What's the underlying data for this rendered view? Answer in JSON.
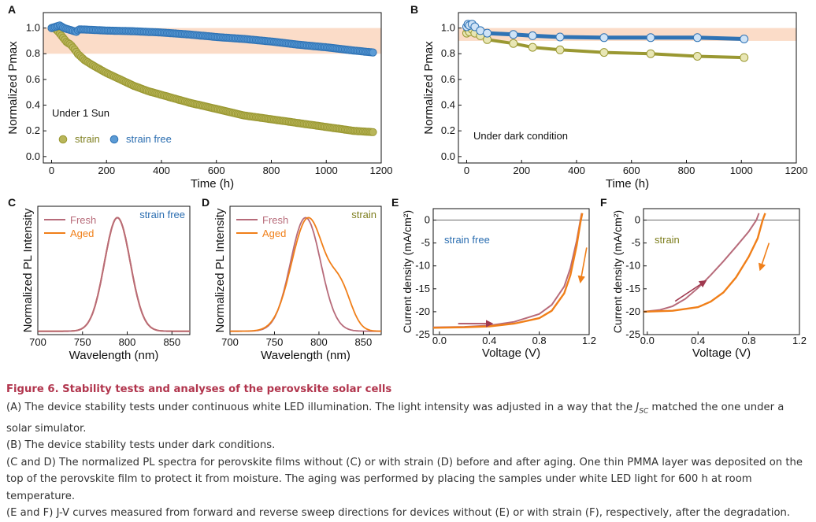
{
  "colors": {
    "olive": "#9a9832",
    "olive_fill": "#b9b65a",
    "blue": "#2f73b5",
    "blue_fill": "#5b9bd5",
    "band": "#fbdcc8",
    "fresh": "#b76b7a",
    "aged": "#f07f19",
    "arrow_fresh": "#a0394f",
    "strain_label": "#7e7f1f",
    "strainfree_label": "#2a6db0",
    "caption_title": "#b1354d"
  },
  "chart_data": [
    {
      "id": "A",
      "type": "scatter",
      "panel_letter": "A",
      "xlabel": "Time (h)",
      "ylabel": "Normalized Pmax",
      "xlim": [
        -30,
        1200
      ],
      "ylim": [
        -0.05,
        1.12
      ],
      "xticks": [
        "0",
        "200",
        "400",
        "600",
        "800",
        "1000",
        "1200"
      ],
      "yticks": [
        "0.0",
        "0.2",
        "0.4",
        "0.6",
        "0.8",
        "1.0"
      ],
      "band": [
        0.8,
        1.0
      ],
      "annotation": "Under 1 Sun",
      "legend": [
        {
          "label": "strain",
          "series": "strain"
        },
        {
          "label": "strain free",
          "series": "strain free"
        }
      ],
      "series": [
        {
          "name": "strain",
          "points": [
            [
              0,
              1.0
            ],
            [
              10,
              1.0
            ],
            [
              25,
              0.97
            ],
            [
              40,
              0.93
            ],
            [
              55,
              0.89
            ],
            [
              70,
              0.87
            ],
            [
              85,
              0.83
            ],
            [
              95,
              0.8
            ],
            [
              105,
              0.78
            ],
            [
              120,
              0.75
            ],
            [
              150,
              0.71
            ],
            [
              200,
              0.65
            ],
            [
              250,
              0.6
            ],
            [
              300,
              0.55
            ],
            [
              350,
              0.51
            ],
            [
              400,
              0.48
            ],
            [
              450,
              0.45
            ],
            [
              500,
              0.42
            ],
            [
              600,
              0.37
            ],
            [
              700,
              0.32
            ],
            [
              800,
              0.29
            ],
            [
              900,
              0.26
            ],
            [
              1000,
              0.23
            ],
            [
              1100,
              0.2
            ],
            [
              1170,
              0.19
            ]
          ]
        },
        {
          "name": "strain free",
          "points": [
            [
              0,
              1.0
            ],
            [
              15,
              1.01
            ],
            [
              30,
              1.02
            ],
            [
              45,
              1.0
            ],
            [
              60,
              0.99
            ],
            [
              75,
              0.98
            ],
            [
              90,
              0.97
            ],
            [
              100,
              0.99
            ],
            [
              200,
              0.98
            ],
            [
              300,
              0.975
            ],
            [
              400,
              0.965
            ],
            [
              500,
              0.95
            ],
            [
              600,
              0.93
            ],
            [
              700,
              0.915
            ],
            [
              800,
              0.895
            ],
            [
              900,
              0.87
            ],
            [
              1000,
              0.85
            ],
            [
              1100,
              0.825
            ],
            [
              1170,
              0.81
            ]
          ]
        }
      ]
    },
    {
      "id": "B",
      "type": "scatter",
      "panel_letter": "B",
      "xlabel": "Time (h)",
      "ylabel": "Normalized Pmax",
      "xlim": [
        -30,
        1200
      ],
      "ylim": [
        -0.05,
        1.12
      ],
      "xticks": [
        "0",
        "200",
        "400",
        "600",
        "800",
        "1000",
        "1200"
      ],
      "yticks": [
        "0.0",
        "0.2",
        "0.4",
        "0.6",
        "0.8",
        "1.0"
      ],
      "band": [
        0.9,
        1.0
      ],
      "annotation": "Under dark condition",
      "series": [
        {
          "name": "strain",
          "points": [
            [
              0,
              0.96
            ],
            [
              5,
              0.99
            ],
            [
              10,
              0.97
            ],
            [
              20,
              0.99
            ],
            [
              30,
              0.96
            ],
            [
              50,
              0.94
            ],
            [
              75,
              0.91
            ],
            [
              170,
              0.88
            ],
            [
              240,
              0.85
            ],
            [
              340,
              0.83
            ],
            [
              500,
              0.81
            ],
            [
              670,
              0.8
            ],
            [
              840,
              0.78
            ],
            [
              1010,
              0.77
            ]
          ]
        },
        {
          "name": "strain free",
          "points": [
            [
              0,
              1.01
            ],
            [
              5,
              1.03
            ],
            [
              10,
              1.02
            ],
            [
              20,
              1.03
            ],
            [
              30,
              1.01
            ],
            [
              50,
              0.98
            ],
            [
              75,
              0.96
            ],
            [
              170,
              0.95
            ],
            [
              240,
              0.94
            ],
            [
              340,
              0.93
            ],
            [
              500,
              0.925
            ],
            [
              670,
              0.925
            ],
            [
              840,
              0.925
            ],
            [
              1010,
              0.915
            ]
          ]
        }
      ]
    },
    {
      "id": "C",
      "type": "line",
      "panel_letter": "C",
      "xlabel": "Wavelength (nm)",
      "ylabel": "Normalized PL Intensity",
      "xlim": [
        700,
        870
      ],
      "ylim": [
        -0.03,
        1.1
      ],
      "xticks": [
        "700",
        "750",
        "800",
        "850"
      ],
      "annotation": "strain free",
      "legend": [
        {
          "label": "Fresh",
          "series": "Fresh"
        },
        {
          "label": "Aged",
          "series": "Aged"
        }
      ],
      "series": [
        {
          "name": "Fresh",
          "center": 789,
          "fwhm": 34,
          "shoulder": 0
        },
        {
          "name": "Aged",
          "center": 789,
          "fwhm": 34,
          "shoulder": 0
        }
      ]
    },
    {
      "id": "D",
      "type": "line",
      "panel_letter": "D",
      "xlabel": "Wavelength (nm)",
      "ylabel": "Normalized PL Intensity",
      "xlim": [
        700,
        870
      ],
      "ylim": [
        -0.03,
        1.1
      ],
      "xticks": [
        "700",
        "750",
        "800",
        "850"
      ],
      "annotation": "strain",
      "legend": [
        {
          "label": "Fresh",
          "series": "Fresh"
        },
        {
          "label": "Aged",
          "series": "Aged"
        }
      ],
      "series": [
        {
          "name": "Fresh",
          "center": 785,
          "fwhm": 40,
          "shoulder": 0
        },
        {
          "name": "Aged",
          "center": 788,
          "fwhm": 44,
          "shoulder": 0.32
        }
      ]
    },
    {
      "id": "E",
      "type": "line",
      "panel_letter": "E",
      "xlabel": "Voltage (V)",
      "ylabel": "Current density (mA/cm²)",
      "xlim": [
        -0.05,
        1.2
      ],
      "ylim": [
        -25,
        2.5
      ],
      "xticks": [
        "0.0",
        "0.4",
        "0.8",
        "1.2"
      ],
      "yticks": [
        "0",
        "-5",
        "-10",
        "-15",
        "-20",
        "-25"
      ],
      "annotation": "strain free",
      "series": [
        {
          "name": "forward",
          "points": [
            [
              -0.05,
              -23.4
            ],
            [
              0.2,
              -23.3
            ],
            [
              0.4,
              -23.0
            ],
            [
              0.6,
              -22.2
            ],
            [
              0.8,
              -20.5
            ],
            [
              0.9,
              -18.5
            ],
            [
              1.0,
              -14.5
            ],
            [
              1.05,
              -10.5
            ],
            [
              1.1,
              -4.5
            ],
            [
              1.13,
              0
            ],
            [
              1.14,
              1.5
            ]
          ]
        },
        {
          "name": "reverse",
          "points": [
            [
              -0.05,
              -23.5
            ],
            [
              0.2,
              -23.4
            ],
            [
              0.4,
              -23.2
            ],
            [
              0.6,
              -22.6
            ],
            [
              0.8,
              -21.4
            ],
            [
              0.9,
              -19.8
            ],
            [
              1.0,
              -16.0
            ],
            [
              1.05,
              -12.0
            ],
            [
              1.1,
              -5.5
            ],
            [
              1.13,
              -0.5
            ],
            [
              1.145,
              1.5
            ]
          ]
        }
      ]
    },
    {
      "id": "F",
      "type": "line",
      "panel_letter": "F",
      "xlabel": "Voltage (V)",
      "ylabel": "Current density (mA/cm²)",
      "xlim": [
        -0.03,
        1.2
      ],
      "ylim": [
        -25,
        2.5
      ],
      "xticks": [
        "0.0",
        "0.4",
        "0.8",
        "1.2"
      ],
      "yticks": [
        "0",
        "-5",
        "-10",
        "-15",
        "-20",
        "-25"
      ],
      "annotation": "strain",
      "series": [
        {
          "name": "forward",
          "points": [
            [
              -0.03,
              -20.0
            ],
            [
              0.1,
              -19.6
            ],
            [
              0.2,
              -18.8
            ],
            [
              0.3,
              -17.2
            ],
            [
              0.4,
              -14.8
            ],
            [
              0.5,
              -12.0
            ],
            [
              0.6,
              -9.0
            ],
            [
              0.7,
              -5.8
            ],
            [
              0.8,
              -2.5
            ],
            [
              0.86,
              0
            ],
            [
              0.88,
              1.5
            ]
          ]
        },
        {
          "name": "reverse",
          "points": [
            [
              -0.03,
              -20.0
            ],
            [
              0.2,
              -19.8
            ],
            [
              0.4,
              -19.0
            ],
            [
              0.5,
              -17.8
            ],
            [
              0.6,
              -15.8
            ],
            [
              0.7,
              -12.5
            ],
            [
              0.8,
              -8.0
            ],
            [
              0.87,
              -4.0
            ],
            [
              0.91,
              0
            ],
            [
              0.93,
              1.5
            ]
          ]
        }
      ]
    }
  ],
  "caption": {
    "title": "Figure 6. Stability tests and analyses of the perovskite solar cells",
    "a_pre": "(A) The device stability tests under continuous white LED illumination. The light intensity was adjusted in a way that the ",
    "a_j": "J",
    "a_sub": "SC",
    "a_post": " matched the one under a solar simulator.",
    "b": "(B) The device stability tests under dark conditions.",
    "cd": "(C and D) The normalized PL spectra for perovskite films without (C) or with strain (D) before and after aging. One thin PMMA layer was deposited on the top of the perovskite film to protect it from moisture. The aging was performed by placing the samples under white LED light for 600 h at room temperature.",
    "ef": "(E and F) J-V curves measured from forward and reverse sweep directions for devices without (E) or with strain (F), respectively, after the degradation."
  }
}
